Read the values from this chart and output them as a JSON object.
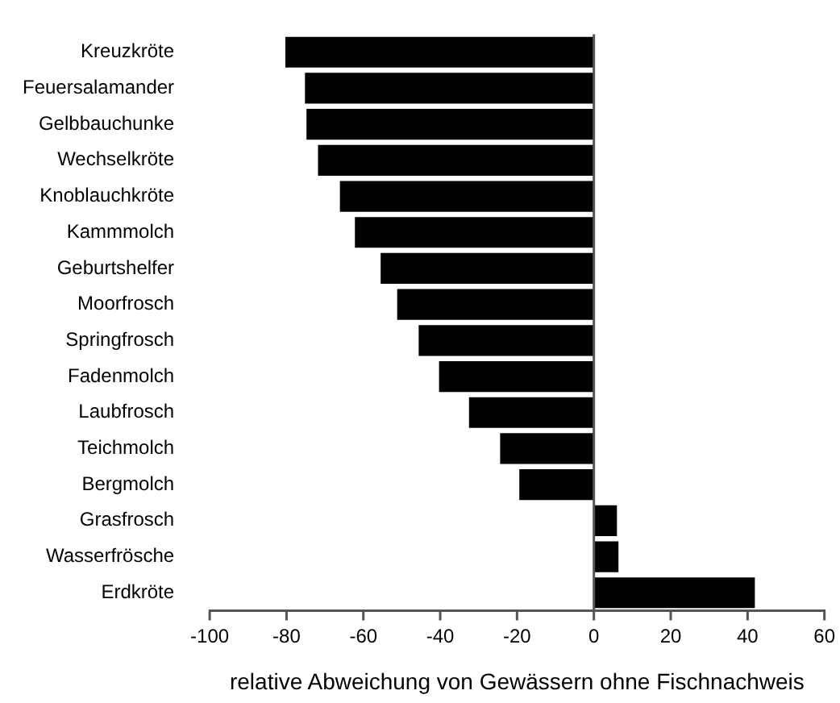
{
  "chart_data": {
    "type": "bar",
    "orientation": "horizontal",
    "xlabel": "relative Abweichung von Gewässern ohne Fischnachweis",
    "categories": [
      "Kreuzkröte",
      "Feuersalamander",
      "Gelbbauchunke",
      "Wechselkröte",
      "Knoblauchkröte",
      "Kammmolch",
      "Geburtshelfer",
      "Moorfrosch",
      "Springfrosch",
      "Fadenmolch",
      "Laubfrosch",
      "Teichmolch",
      "Bergmolch",
      "Grasfrosch",
      "Wasserfrösche",
      "Erdkröte"
    ],
    "values": [
      -80.3,
      -75.2,
      -74.8,
      -71.8,
      -66.1,
      -62.2,
      -55.5,
      -51.2,
      -45.6,
      -40.3,
      -32.5,
      -24.4,
      -19.4,
      6.0,
      6.4,
      41.9
    ],
    "color": "#000000",
    "ref_lines": [
      {
        "axis": "x",
        "value": 0,
        "color": "#555555"
      }
    ],
    "xlim": [
      -100,
      60
    ],
    "xticks": [
      -100,
      -80,
      -60,
      -40,
      -20,
      0,
      20,
      40,
      60
    ],
    "grid": false
  }
}
